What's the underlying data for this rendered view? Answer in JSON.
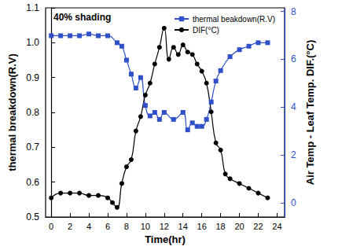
{
  "chart_data": {
    "type": "line",
    "annotation": "40% shading",
    "x_label": "Time(hr)",
    "y_label": "thermal breakdown(R.V)",
    "y2_label": "Air Temp - Leaf Temp. DIF.(°C)",
    "xlim": [
      -0.6,
      24.8
    ],
    "xticks": [
      0,
      2,
      4,
      6,
      8,
      10,
      12,
      14,
      16,
      18,
      20,
      22,
      24
    ],
    "ylim": [
      0.5,
      1.1
    ],
    "yticks": [
      0.5,
      0.6,
      0.7,
      0.8,
      0.9,
      {
        "value": 1,
        "label": "1.0"
      },
      1.1
    ],
    "y2lim": [
      -0.6,
      8.15
    ],
    "y2ticks": [
      0,
      2,
      4,
      6,
      8
    ],
    "grid": false,
    "legend": "upper right",
    "series": [
      {
        "name": "thermal beakdown(R.V)",
        "color": "#2f50c8",
        "axis": "y",
        "marker": "square",
        "line_style": "solid",
        "x": [
          0,
          1,
          2,
          3,
          4,
          5,
          6,
          7,
          7.5,
          8,
          8.5,
          9,
          9.5,
          10,
          10.5,
          11,
          11.5,
          12,
          13,
          14,
          14.5,
          15,
          15.5,
          16,
          16.5,
          17,
          17.5,
          18,
          19,
          20,
          21,
          22,
          23
        ],
        "values": [
          1.02,
          1.02,
          1.02,
          1.02,
          1.025,
          1.02,
          1.02,
          1.0,
          0.99,
          0.95,
          0.91,
          0.87,
          0.9,
          0.82,
          0.79,
          0.8,
          0.78,
          0.8,
          0.78,
          0.8,
          0.75,
          0.77,
          0.76,
          0.76,
          0.78,
          0.83,
          0.89,
          0.92,
          0.96,
          0.98,
          0.99,
          1.0,
          1.0
        ]
      },
      {
        "name": "DIF(°C)",
        "color": "#000000",
        "axis": "y2",
        "marker": "circle",
        "line_style": "solid",
        "x": [
          0,
          1,
          2,
          3,
          4,
          5,
          6,
          6.5,
          7,
          7.5,
          8,
          8.5,
          9,
          9.5,
          10,
          10.5,
          11,
          11.5,
          12,
          12.5,
          13,
          13.5,
          14,
          14.5,
          15,
          15.5,
          16,
          16.5,
          17,
          17.5,
          18,
          18.5,
          19,
          20,
          21,
          22,
          23
        ],
        "values": [
          0.2,
          0.4,
          0.4,
          0.4,
          0.3,
          0.3,
          0.2,
          0.0,
          -0.2,
          0.8,
          1.5,
          1.8,
          3.0,
          3.6,
          4.5,
          5.0,
          5.8,
          6.5,
          7.3,
          6.0,
          6.5,
          6.2,
          6.6,
          6.3,
          6.2,
          5.8,
          5.5,
          5.0,
          3.8,
          2.5,
          2.2,
          1.2,
          1.0,
          0.8,
          0.6,
          0.4,
          0.2
        ]
      }
    ]
  }
}
